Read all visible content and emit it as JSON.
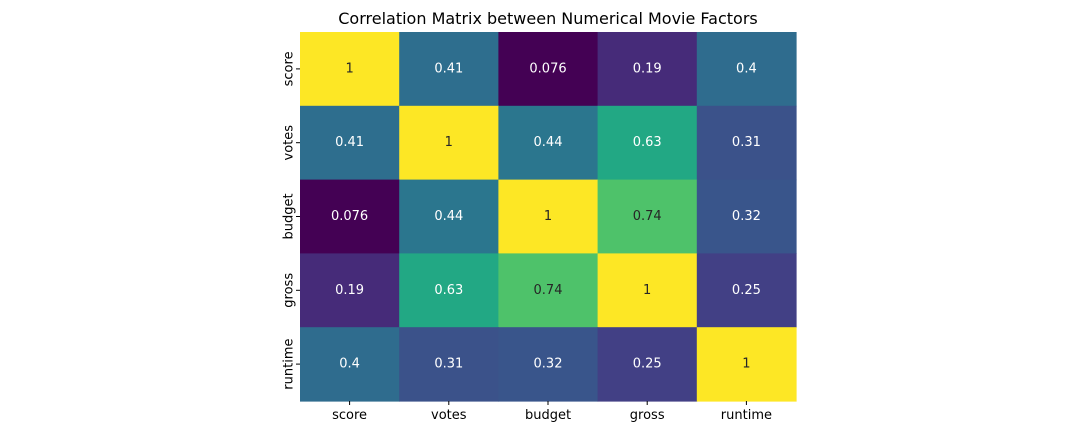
{
  "chart_data": {
    "type": "heatmap",
    "title": "Correlation Matrix between Numerical Movie Factors",
    "x_categories": [
      "score",
      "votes",
      "budget",
      "gross",
      "runtime"
    ],
    "y_categories": [
      "score",
      "votes",
      "budget",
      "gross",
      "runtime"
    ],
    "values": [
      [
        1,
        0.41,
        0.076,
        0.19,
        0.4
      ],
      [
        0.41,
        1,
        0.44,
        0.63,
        0.31
      ],
      [
        0.076,
        0.44,
        1,
        0.74,
        0.32
      ],
      [
        0.19,
        0.63,
        0.74,
        1,
        0.25
      ],
      [
        0.4,
        0.31,
        0.32,
        0.25,
        1
      ]
    ],
    "colormap": "viridis",
    "annotations": true,
    "colorbar": false,
    "grid": false
  }
}
